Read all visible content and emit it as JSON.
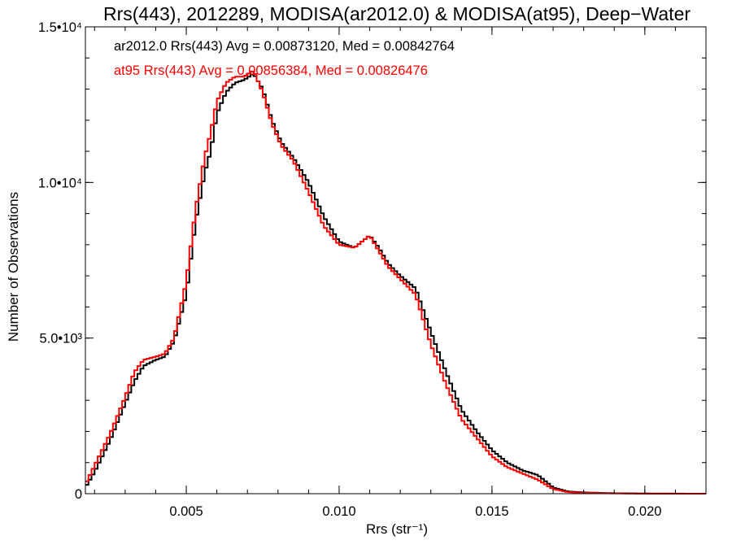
{
  "chart_data": {
    "type": "histogram",
    "title": "Rrs(443), 2012289, MODISA(ar2012.0) & MODISA(at95), Deep−Water",
    "xlabel": "Rrs (str⁻¹)",
    "ylabel": "Number of Observations",
    "xlim": [
      0.0017,
      0.022
    ],
    "ylim": [
      0,
      15000
    ],
    "x_ticks": [
      {
        "value": 0.005,
        "label": "0.005"
      },
      {
        "value": 0.01,
        "label": "0.010"
      },
      {
        "value": 0.015,
        "label": "0.015"
      },
      {
        "value": 0.02,
        "label": "0.020"
      }
    ],
    "y_ticks": [
      {
        "value": 0,
        "label": "0"
      },
      {
        "value": 5000,
        "label": "5.0•10³"
      },
      {
        "value": 10000,
        "label": "1.0•10⁴"
      },
      {
        "value": 15000,
        "label": "1.5•10⁴"
      }
    ],
    "grid": false,
    "annotations": [
      {
        "text": "ar2012.0 Rrs(443) Avg = 0.00873120, Med = 0.00842764",
        "color": "#000000"
      },
      {
        "text": "at95 Rrs(443) Avg = 0.00856384, Med = 0.00826476",
        "color": "#ff0000"
      }
    ],
    "series": [
      {
        "color": "#000000",
        "x": [
          0.0017,
          0.002,
          0.0025,
          0.003,
          0.0033,
          0.0036,
          0.004,
          0.0043,
          0.0046,
          0.005,
          0.0053,
          0.0056,
          0.0058,
          0.006,
          0.0063,
          0.0066,
          0.0069,
          0.0072,
          0.0075,
          0.0078,
          0.0081,
          0.0085,
          0.009,
          0.0095,
          0.01,
          0.0105,
          0.011,
          0.0113,
          0.0116,
          0.012,
          0.0125,
          0.013,
          0.0135,
          0.014,
          0.0145,
          0.015,
          0.0155,
          0.016,
          0.0165,
          0.017,
          0.0175,
          0.018,
          0.019,
          0.02,
          0.022
        ],
        "y": [
          200,
          700,
          1700,
          2900,
          3600,
          4100,
          4300,
          4400,
          4900,
          6400,
          8700,
          10300,
          11000,
          12200,
          12900,
          13200,
          13300,
          13500,
          13000,
          12000,
          11300,
          10800,
          10000,
          8900,
          8100,
          7900,
          8300,
          7900,
          7400,
          7000,
          6600,
          5200,
          3900,
          2700,
          2000,
          1400,
          1000,
          750,
          600,
          200,
          70,
          40,
          15,
          5,
          0
        ]
      },
      {
        "color": "#ff0000",
        "x": [
          0.0017,
          0.002,
          0.0025,
          0.003,
          0.0033,
          0.0036,
          0.004,
          0.0043,
          0.0046,
          0.005,
          0.0053,
          0.0056,
          0.0058,
          0.006,
          0.0063,
          0.0066,
          0.0069,
          0.0072,
          0.0075,
          0.0078,
          0.0081,
          0.0085,
          0.009,
          0.0095,
          0.01,
          0.0105,
          0.011,
          0.0113,
          0.0116,
          0.012,
          0.0125,
          0.013,
          0.0135,
          0.014,
          0.0145,
          0.015,
          0.0155,
          0.016,
          0.0165,
          0.017,
          0.0175,
          0.018,
          0.019,
          0.02,
          0.022
        ],
        "y": [
          300,
          900,
          1900,
          3100,
          3900,
          4300,
          4400,
          4500,
          5000,
          6800,
          9100,
          10800,
          11600,
          12600,
          13200,
          13400,
          13400,
          13600,
          12900,
          11900,
          11200,
          10700,
          9700,
          8600,
          8000,
          7900,
          8300,
          7800,
          7300,
          6900,
          6400,
          4800,
          3500,
          2400,
          1800,
          1200,
          850,
          650,
          450,
          150,
          50,
          25,
          10,
          3,
          0
        ]
      }
    ]
  }
}
